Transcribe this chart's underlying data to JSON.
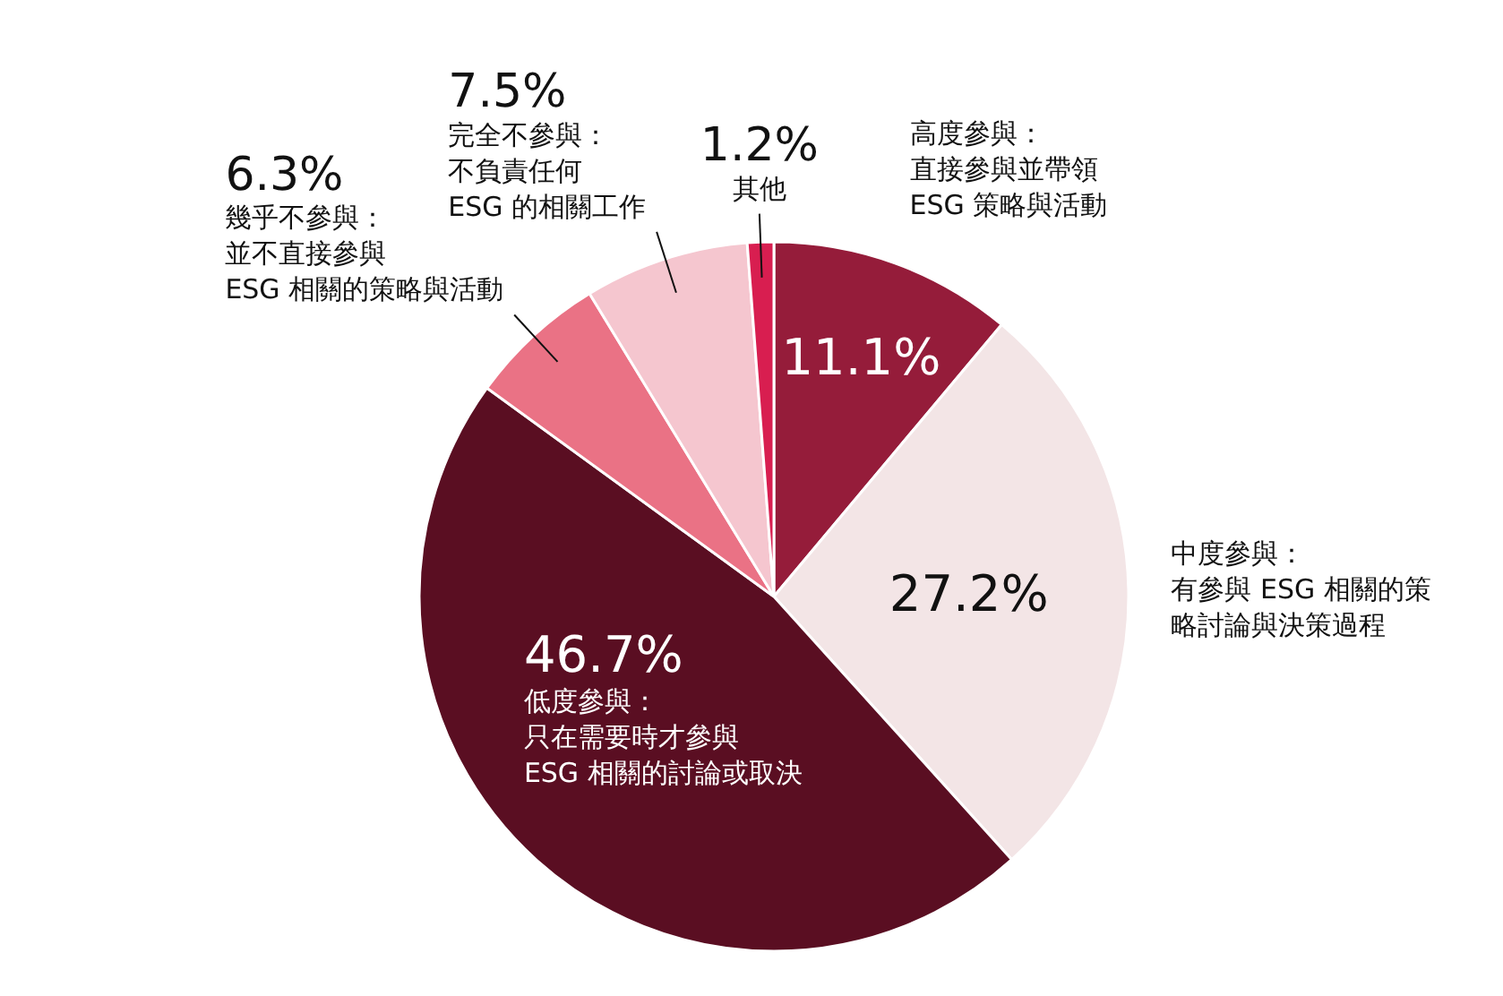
{
  "chart_data": {
    "type": "pie",
    "categories": [
      "高度參與：直接參與並帶領ESG 策略與活動",
      "中度參與：有參與 ESG 相關的策略討論與決策過程",
      "低度參與：只在需要時才參與ESG 相關的討論或取決",
      "幾乎不參與：並不直接參與ESG 相關的策略與活動",
      "完全不參與：不負責任何ESG 的相關工作",
      "其他"
    ],
    "values": [
      11.1,
      27.2,
      46.7,
      6.3,
      7.5,
      1.2
    ],
    "colors": [
      "#951c3a",
      "#f3e5e6",
      "#5a0e22",
      "#ea7285",
      "#f5c6cf",
      "#d81e50"
    ],
    "value_labels": [
      "11.1%",
      "27.2%",
      "46.7%",
      "6.3%",
      "7.5%",
      "1.2%"
    ]
  }
}
